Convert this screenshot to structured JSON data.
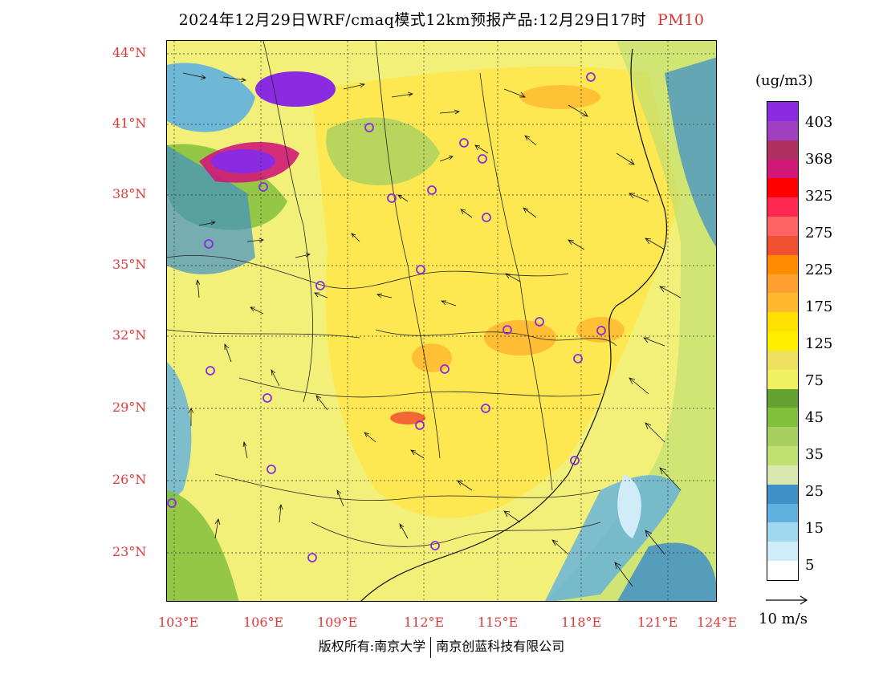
{
  "title": {
    "text": "2024年12月29日WRF/cmaq模式12km预报产品:12月29日17时",
    "variable": "PM10"
  },
  "latitude_labels": [
    "44°N",
    "41°N",
    "38°N",
    "35°N",
    "32°N",
    "29°N",
    "26°N",
    "23°N"
  ],
  "longitude_labels": [
    "103°E",
    "106°E",
    "109°E",
    "112°E",
    "115°E",
    "118°E",
    "121°E",
    "124°E"
  ],
  "legend": {
    "unit": "(ug/m3)",
    "labels": [
      "403",
      "368",
      "325",
      "275",
      "225",
      "175",
      "125",
      "75",
      "45",
      "35",
      "25",
      "15",
      "5"
    ],
    "colors": [
      "#8a2be2",
      "#a040c0",
      "#b03060",
      "#d01878",
      "#ff0000",
      "#ff2850",
      "#ff6464",
      "#f05030",
      "#ff8c00",
      "#ffa030",
      "#ffb830",
      "#ffe000",
      "#ffee00",
      "#f0e060",
      "#f0f060",
      "#64a032",
      "#82c03c",
      "#a8d060",
      "#c0e070",
      "#d8e8b0",
      "#4090c8",
      "#60b0e0",
      "#a0d8f0",
      "#d0ecf8",
      "#ffffff"
    ]
  },
  "wind_reference": {
    "label": "10 m/s"
  },
  "footer": {
    "left": "版权所有:南京大学",
    "right": "南京创蓝科技有限公司"
  }
}
